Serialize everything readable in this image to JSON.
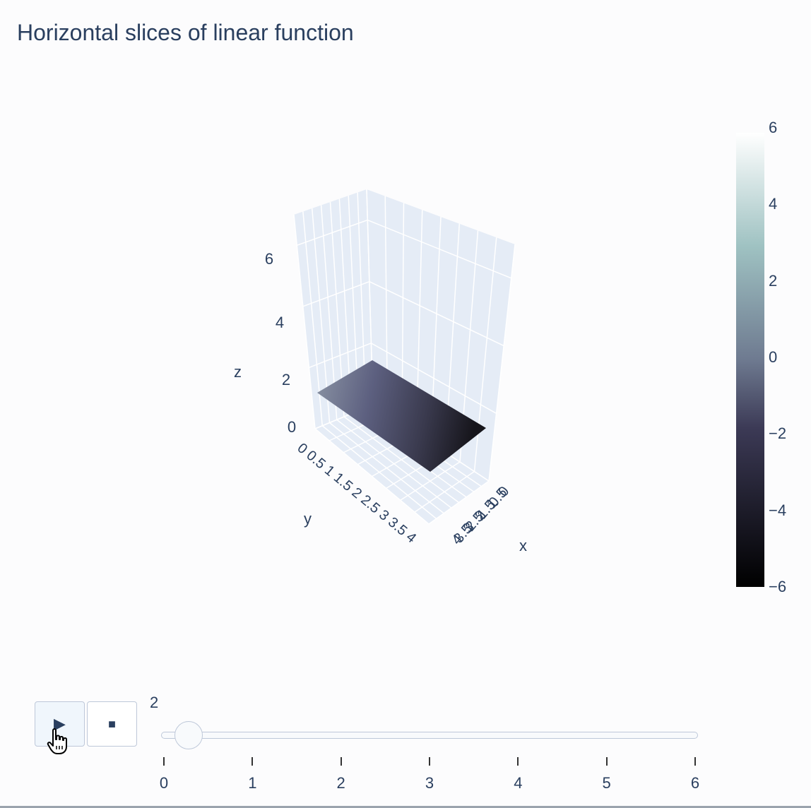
{
  "chart_data": {
    "type": "surface",
    "title": "Horizontal slices of linear function",
    "scene": {
      "xaxis": {
        "title": "x",
        "ticks": [
          "0",
          "0.5",
          "1",
          "1.5",
          "2",
          "2.5",
          "3",
          "3.5",
          "4"
        ]
      },
      "yaxis": {
        "title": "y",
        "ticks": [
          "0",
          "0.5",
          "1",
          "1.5",
          "2",
          "2.5",
          "3",
          "3.5",
          "4"
        ]
      },
      "zaxis": {
        "title": "z",
        "ticks": [
          "0",
          "2",
          "4",
          "6"
        ],
        "range": [
          0,
          7
        ]
      }
    },
    "surface": {
      "z_level": 2,
      "x_range": [
        0,
        4
      ],
      "y_range": [
        0,
        4
      ],
      "surfacecolor_range": [
        -6,
        0
      ]
    },
    "colorscale": "bone",
    "colorscale_stops": [
      "#000000",
      "#3c3b5a",
      "#8fa6a5",
      "#ffffff"
    ],
    "colorbar": {
      "ticks": [
        "6",
        "4",
        "2",
        "0",
        "−2",
        "−4",
        "−6"
      ],
      "range": [
        -6,
        6
      ]
    },
    "grid": true
  },
  "controls": {
    "play_icon": "play-icon",
    "stop_icon": "stop-icon",
    "play_symbol": "▶",
    "stop_symbol": "■",
    "slider": {
      "current_value": "2",
      "value": 0.28,
      "min": 0,
      "max": 6,
      "labels": [
        "0",
        "1",
        "2",
        "3",
        "4",
        "5",
        "6"
      ]
    }
  },
  "colors": {
    "accent": "#2a3f5f",
    "scene_bg": "#e5ecf6",
    "grid": "#ffffff",
    "button_border": "#bec8d9"
  }
}
